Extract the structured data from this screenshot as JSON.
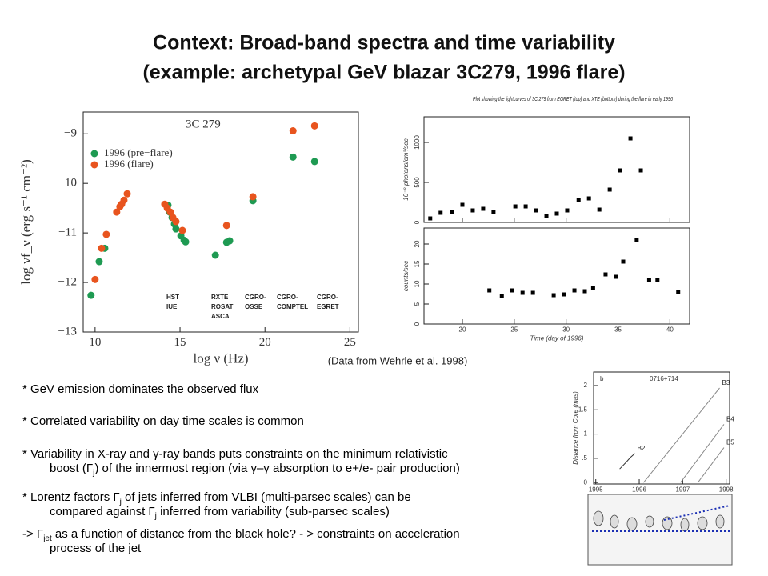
{
  "title": [
    "Context:  Broad-band spectra and time variability",
    "(example: archetypal GeV blazar 3C279, 1996 flare)"
  ],
  "credit": "(Data from Wehrle et al. 1998)",
  "bullets": [
    [
      [
        {
          "text": "* GeV emission dominates the observed flux"
        }
      ]
    ],
    [
      [
        {
          "text": "* Correlated variability on day time scales is common"
        }
      ]
    ],
    [
      [
        {
          "text": "* Variability in X-ray and γ-ray bands puts constraints on the minimum relativistic"
        }
      ],
      [
        {
          "text": "boost (Γ"
        },
        {
          "text": "j",
          "sub": true
        },
        {
          "text": ") of the innermost region (via γ–γ absorption to e+/e- pair production)"
        }
      ]
    ],
    [
      [
        {
          "text": "* Lorentz factors Γ"
        },
        {
          "text": "j",
          "sub": true
        },
        {
          "text": " of jets inferred from VLBI (multi-parsec scales) can be"
        }
      ],
      [
        {
          "text": "compared against Γ"
        },
        {
          "text": "j",
          "sub": true
        },
        {
          "text": " inferred from variability (sub-parsec scales)"
        }
      ]
    ],
    [
      [
        {
          "text": "-> Γ"
        },
        {
          "text": "jet",
          "sub": true
        },
        {
          "text": "  as a function of distance from the black hole? - > constraints on acceleration"
        }
      ],
      [
        {
          "text": "process of the jet"
        }
      ]
    ]
  ],
  "chart_data": [
    {
      "type": "scatter",
      "title": "3C 279",
      "x_label": "log ν   (Hz)",
      "y_label": "log νf_ν   (erg s⁻¹ cm⁻²)",
      "xlim": [
        9.3,
        25.5
      ],
      "ylim": [
        -13,
        -8.56
      ],
      "xticks": [
        10,
        15,
        20,
        25
      ],
      "yticks": [
        {
          "value": -13,
          "label": "−13"
        },
        {
          "value": -12,
          "label": "−12"
        },
        {
          "value": -11,
          "label": "−11"
        },
        {
          "value": -10,
          "label": "−10"
        },
        {
          "value": -9,
          "label": "−9"
        }
      ],
      "legend": "upper left",
      "annotations": [
        "HST",
        "IUE",
        "RXTE",
        "ROSAT",
        "ASCA",
        "CGRO-",
        "OSSE",
        "CGRO-",
        "COMPTEL",
        "CGRO-",
        "EGRET"
      ],
      "series": [
        {
          "name": "1996 (pre−flare)",
          "color": "#1e9a52",
          "x": [
            9.76,
            10.24,
            10.57,
            14.29,
            14.39,
            14.53,
            14.67,
            14.76,
            15.05,
            15.24,
            15.33,
            17.08,
            17.74,
            17.92,
            19.29,
            21.65,
            22.92
          ],
          "values": [
            -12.26,
            -11.58,
            -11.31,
            -10.44,
            -10.58,
            -10.69,
            -10.82,
            -10.92,
            -11.06,
            -11.15,
            -11.18,
            -11.45,
            -11.19,
            -11.16,
            -10.35,
            -9.47,
            -9.56
          ]
        },
        {
          "name": "1996 (flare)",
          "color": "#e8541e",
          "x": [
            10.0,
            10.38,
            10.66,
            11.27,
            11.46,
            11.56,
            11.7,
            11.89,
            14.1,
            14.25,
            14.43,
            14.58,
            14.76,
            15.14,
            17.74,
            19.29,
            21.65,
            22.92
          ],
          "values": [
            -11.94,
            -11.31,
            -11.03,
            -10.58,
            -10.47,
            -10.42,
            -10.34,
            -10.21,
            -10.42,
            -10.5,
            -10.58,
            -10.69,
            -10.77,
            -10.95,
            -10.85,
            -10.27,
            -8.94,
            -8.84
          ]
        }
      ]
    },
    {
      "type": "scatter",
      "title": "Plot showing the lightcurves of 3C 279 from EGRET (top) and XTE (bottom) during the flare in early 1996",
      "y_label": "10⁻⁸ photons/cm²/sec",
      "xlim": [
        16.3,
        41.9
      ],
      "ylim": [
        0,
        1320
      ],
      "yticks": [
        0,
        500,
        1000
      ],
      "series": [
        {
          "color": "#000000",
          "x": [
            16.9,
            17.9,
            19.0,
            20,
            21,
            22,
            23,
            25.1,
            26.1,
            27.1,
            28.1,
            29.1,
            30.1,
            31.2,
            32.2,
            33.2,
            34.2,
            35.2,
            36.2,
            37.2
          ],
          "values": [
            50,
            120,
            130,
            220,
            150,
            170,
            130,
            200,
            200,
            150,
            80,
            110,
            150,
            280,
            300,
            160,
            410,
            650,
            1050,
            650
          ]
        }
      ]
    },
    {
      "type": "scatter",
      "x_label": "Time (day of 1996)",
      "y_label": "counts/sec",
      "xlim": [
        16.3,
        41.9
      ],
      "ylim": [
        0,
        24
      ],
      "xticks": [
        20,
        25,
        30,
        35,
        40
      ],
      "yticks": [
        0,
        5,
        10,
        15,
        20
      ],
      "series": [
        {
          "color": "#000000",
          "x": [
            22.6,
            23.8,
            24.8,
            25.8,
            26.8,
            28.8,
            29.8,
            30.8,
            31.8,
            32.6,
            33.8,
            34.8,
            35.5,
            36.8,
            38.0,
            38.8,
            40.8
          ],
          "values": [
            8.4,
            7.0,
            8.4,
            7.8,
            7.8,
            7.2,
            7.4,
            8.4,
            8.2,
            9.0,
            12.4,
            11.8,
            15.6,
            21,
            11,
            11,
            8
          ]
        }
      ]
    },
    {
      "type": "line",
      "annotations": [
        "b",
        "0716+714"
      ],
      "y_label": "Distance from Core (mas)",
      "xlim": [
        1994.95,
        1998.08
      ],
      "ylim": [
        -0.03,
        2.28
      ],
      "xticks": [
        1995,
        1996,
        1997,
        1998
      ],
      "yticks": [
        0,
        {
          "value": 0.5,
          "label": ".5"
        },
        1,
        {
          "value": 1.5,
          "label": "1.5"
        },
        2
      ],
      "series": [
        {
          "name": "B2",
          "color": "#333333",
          "x": [
            1995.55,
            1995.7,
            1995.8,
            1995.9
          ],
          "values": [
            0.28,
            0.42,
            0.52,
            0.6
          ]
        },
        {
          "name": "B3",
          "color": "#888888",
          "x": [
            1996.1,
            1997.85
          ],
          "values": [
            0,
            1.95
          ]
        },
        {
          "name": "B4",
          "color": "#888888",
          "x": [
            1996.95,
            1997.95
          ],
          "values": [
            0,
            1.2
          ]
        },
        {
          "name": "B5",
          "color": "#888888",
          "x": [
            1997.35,
            1997.95
          ],
          "values": [
            0,
            0.72
          ]
        }
      ]
    }
  ]
}
